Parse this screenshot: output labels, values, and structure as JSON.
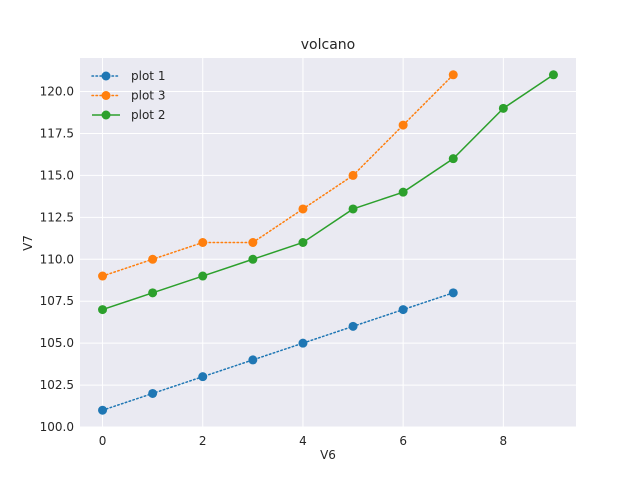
{
  "chart_data": {
    "type": "line",
    "title": "volcano",
    "xlabel": "V6",
    "ylabel": "V7",
    "xlim": [
      -0.45,
      9.45
    ],
    "ylim": [
      100.0,
      122.0
    ],
    "xticks": [
      0,
      2,
      4,
      6,
      8
    ],
    "yticks": [
      100.0,
      102.5,
      105.0,
      107.5,
      110.0,
      112.5,
      115.0,
      117.5,
      120.0
    ],
    "ytick_labels": [
      "100.0",
      "102.5",
      "105.0",
      "107.5",
      "110.0",
      "112.5",
      "115.0",
      "117.5",
      "120.0"
    ],
    "grid": true,
    "legend_position": "top-left",
    "series": [
      {
        "name": "plot 1",
        "color": "#1f77b4",
        "linestyle": "dotted",
        "x": [
          0,
          1,
          2,
          3,
          4,
          5,
          6,
          7
        ],
        "y": [
          101,
          102,
          103,
          104,
          105,
          106,
          107,
          108
        ]
      },
      {
        "name": "plot 3",
        "color": "#ff7f0e",
        "linestyle": "dotted",
        "x": [
          0,
          1,
          2,
          3,
          4,
          5,
          6,
          7
        ],
        "y": [
          109,
          110,
          111,
          111,
          113,
          115,
          118,
          121
        ]
      },
      {
        "name": "plot 2",
        "color": "#2ca02c",
        "linestyle": "solid",
        "x": [
          0,
          1,
          2,
          3,
          4,
          5,
          6,
          7,
          8,
          9
        ],
        "y": [
          107,
          108,
          109,
          110,
          111,
          113,
          114,
          116,
          119,
          121
        ]
      }
    ]
  }
}
